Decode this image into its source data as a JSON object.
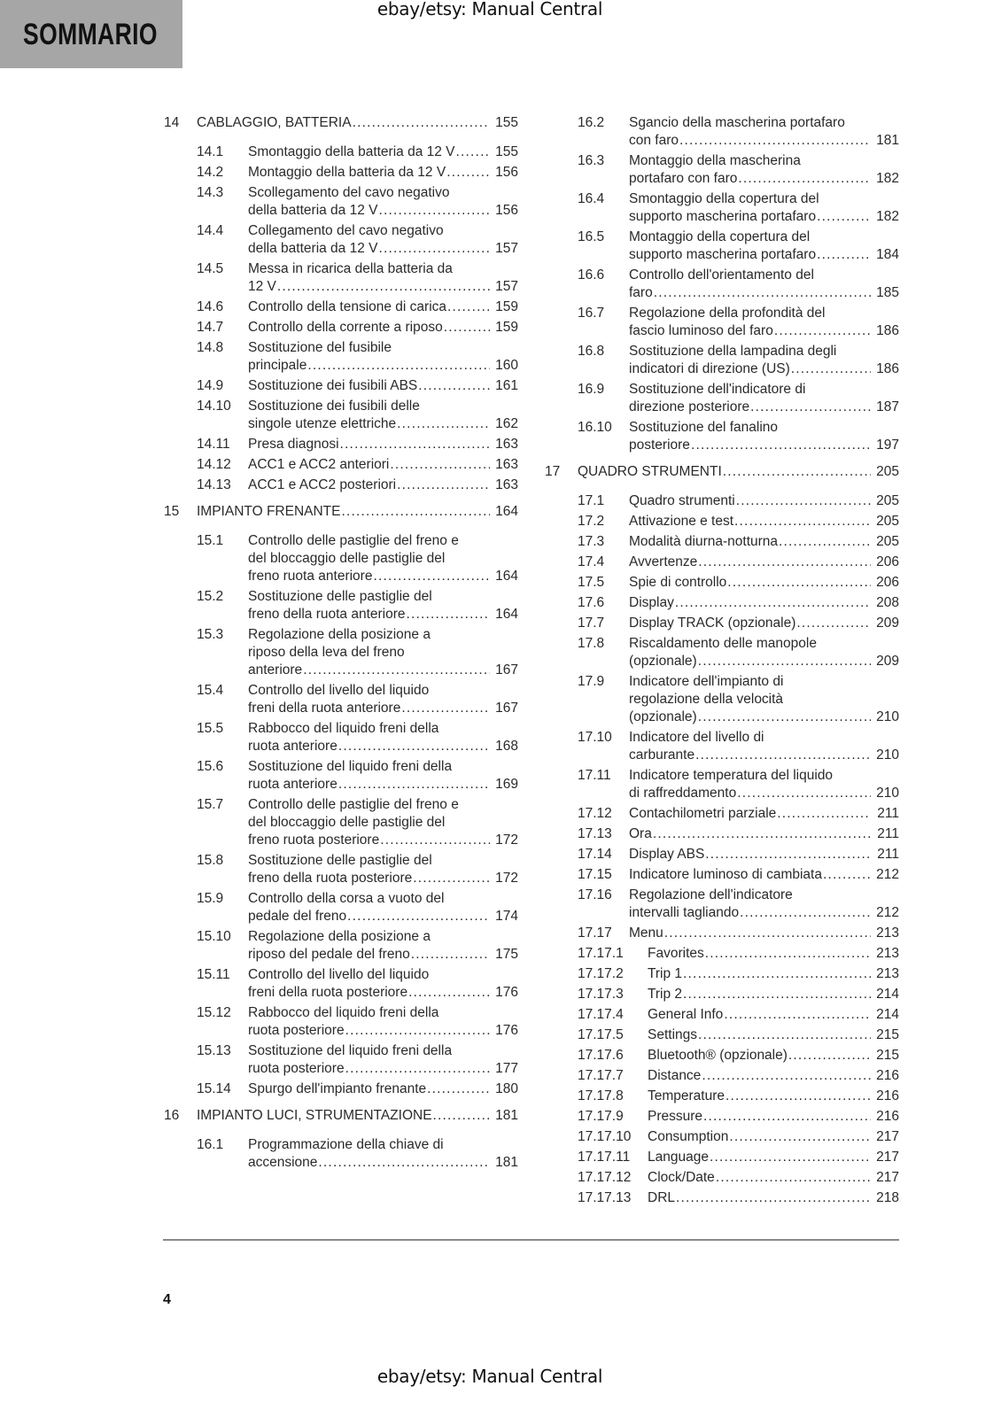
{
  "watermark": "ebay/etsy: Manual Central",
  "section_title": "SOMMARIO",
  "page_number": "4",
  "columns": {
    "left": [
      {
        "type": "chapter",
        "num": "14",
        "lines": [
          "CABLAGGIO, BATTERIA"
        ],
        "page": "155"
      },
      {
        "type": "sec",
        "num": "14.1",
        "lines": [
          "Smontaggio della batteria da 12 V"
        ],
        "page": "155"
      },
      {
        "type": "sec",
        "num": "14.2",
        "lines": [
          "Montaggio della batteria da 12 V"
        ],
        "page": "156"
      },
      {
        "type": "sec",
        "num": "14.3",
        "lines": [
          "Scollegamento del cavo negativo",
          "della batteria da 12 V"
        ],
        "page": "156"
      },
      {
        "type": "sec",
        "num": "14.4",
        "lines": [
          "Collegamento del cavo negativo",
          "della batteria da 12 V"
        ],
        "page": "157"
      },
      {
        "type": "sec",
        "num": "14.5",
        "lines": [
          "Messa in ricarica della batteria da",
          "12 V"
        ],
        "page": "157"
      },
      {
        "type": "sec",
        "num": "14.6",
        "lines": [
          "Controllo della tensione di carica"
        ],
        "page": "159"
      },
      {
        "type": "sec",
        "num": "14.7",
        "lines": [
          "Controllo della corrente a riposo"
        ],
        "page": "159"
      },
      {
        "type": "sec",
        "num": "14.8",
        "lines": [
          "Sostituzione del fusibile",
          "principale"
        ],
        "page": "160"
      },
      {
        "type": "sec",
        "num": "14.9",
        "lines": [
          "Sostituzione dei fusibili ABS"
        ],
        "page": "161"
      },
      {
        "type": "sec",
        "num": "14.10",
        "lines": [
          "Sostituzione dei fusibili delle",
          "singole utenze elettriche"
        ],
        "page": "162"
      },
      {
        "type": "sec",
        "num": "14.11",
        "lines": [
          "Presa diagnosi"
        ],
        "page": "163"
      },
      {
        "type": "sec",
        "num": "14.12",
        "lines": [
          "ACC1 e ACC2 anteriori"
        ],
        "page": "163"
      },
      {
        "type": "sec",
        "num": "14.13",
        "lines": [
          "ACC1 e ACC2 posteriori"
        ],
        "page": "163"
      },
      {
        "type": "chapter",
        "num": "15",
        "lines": [
          "IMPIANTO FRENANTE"
        ],
        "page": "164"
      },
      {
        "type": "sec",
        "num": "15.1",
        "lines": [
          "Controllo delle pastiglie del freno e",
          "del bloccaggio delle pastiglie del",
          "freno ruota anteriore"
        ],
        "page": "164"
      },
      {
        "type": "sec",
        "num": "15.2",
        "lines": [
          "Sostituzione delle pastiglie del",
          "freno della ruota anteriore"
        ],
        "page": "164"
      },
      {
        "type": "sec",
        "num": "15.3",
        "lines": [
          "Regolazione della posizione a",
          "riposo della leva del freno",
          "anteriore"
        ],
        "page": "167"
      },
      {
        "type": "sec",
        "num": "15.4",
        "lines": [
          "Controllo del livello del liquido",
          "freni della ruota anteriore"
        ],
        "page": "167"
      },
      {
        "type": "sec",
        "num": "15.5",
        "lines": [
          "Rabbocco del liquido freni della",
          "ruota anteriore"
        ],
        "page": "168"
      },
      {
        "type": "sec",
        "num": "15.6",
        "lines": [
          "Sostituzione del liquido freni della",
          "ruota anteriore"
        ],
        "page": "169"
      },
      {
        "type": "sec",
        "num": "15.7",
        "lines": [
          "Controllo delle pastiglie del freno e",
          "del bloccaggio delle pastiglie del",
          "freno ruota posteriore"
        ],
        "page": "172"
      },
      {
        "type": "sec",
        "num": "15.8",
        "lines": [
          "Sostituzione delle pastiglie del",
          "freno della ruota posteriore"
        ],
        "page": "172"
      },
      {
        "type": "sec",
        "num": "15.9",
        "lines": [
          "Controllo della corsa a vuoto del",
          "pedale del freno"
        ],
        "page": "174"
      },
      {
        "type": "sec",
        "num": "15.10",
        "lines": [
          "Regolazione della posizione a",
          "riposo del pedale del freno"
        ],
        "page": "175"
      },
      {
        "type": "sec",
        "num": "15.11",
        "lines": [
          "Controllo del livello del liquido",
          "freni della ruota posteriore"
        ],
        "page": "176"
      },
      {
        "type": "sec",
        "num": "15.12",
        "lines": [
          "Rabbocco del liquido freni della",
          "ruota posteriore"
        ],
        "page": "176"
      },
      {
        "type": "sec",
        "num": "15.13",
        "lines": [
          "Sostituzione del liquido freni della",
          "ruota posteriore"
        ],
        "page": "177"
      },
      {
        "type": "sec",
        "num": "15.14",
        "lines": [
          "Spurgo dell'impianto frenante"
        ],
        "page": "180"
      },
      {
        "type": "chapter",
        "num": "16",
        "lines": [
          "IMPIANTO LUCI, STRUMENTAZIONE"
        ],
        "page": "181"
      },
      {
        "type": "sec",
        "num": "16.1",
        "lines": [
          "Programmazione della chiave di",
          "accensione"
        ],
        "page": "181"
      }
    ],
    "right": [
      {
        "type": "sec",
        "num": "16.2",
        "lines": [
          "Sgancio della mascherina portafaro",
          "con faro"
        ],
        "page": "181"
      },
      {
        "type": "sec",
        "num": "16.3",
        "lines": [
          "Montaggio della mascherina",
          "portafaro con faro"
        ],
        "page": "182"
      },
      {
        "type": "sec",
        "num": "16.4",
        "lines": [
          "Smontaggio della copertura del",
          "supporto mascherina portafaro"
        ],
        "page": "182"
      },
      {
        "type": "sec",
        "num": "16.5",
        "lines": [
          "Montaggio della copertura del",
          "supporto mascherina portafaro"
        ],
        "page": "184"
      },
      {
        "type": "sec",
        "num": "16.6",
        "lines": [
          "Controllo dell'orientamento del",
          "faro"
        ],
        "page": "185"
      },
      {
        "type": "sec",
        "num": "16.7",
        "lines": [
          "Regolazione della profondità del",
          "fascio luminoso del faro"
        ],
        "page": "186"
      },
      {
        "type": "sec",
        "num": "16.8",
        "lines": [
          "Sostituzione della lampadina degli",
          "indicatori di direzione (US)"
        ],
        "page": "186"
      },
      {
        "type": "sec",
        "num": "16.9",
        "lines": [
          "Sostituzione dell'indicatore di",
          "direzione posteriore"
        ],
        "page": "187"
      },
      {
        "type": "sec",
        "num": "16.10",
        "lines": [
          "Sostituzione del fanalino",
          "posteriore"
        ],
        "page": "197"
      },
      {
        "type": "chapter",
        "num": "17",
        "lines": [
          "QUADRO STRUMENTI"
        ],
        "page": "205"
      },
      {
        "type": "sec",
        "num": "17.1",
        "lines": [
          "Quadro strumenti"
        ],
        "page": "205"
      },
      {
        "type": "sec",
        "num": "17.2",
        "lines": [
          "Attivazione e test"
        ],
        "page": "205"
      },
      {
        "type": "sec",
        "num": "17.3",
        "lines": [
          "Modalità diurna-notturna"
        ],
        "page": "205"
      },
      {
        "type": "sec",
        "num": "17.4",
        "lines": [
          "Avvertenze"
        ],
        "page": "206"
      },
      {
        "type": "sec",
        "num": "17.5",
        "lines": [
          "Spie di controllo"
        ],
        "page": "206"
      },
      {
        "type": "sec",
        "num": "17.6",
        "lines": [
          "Display"
        ],
        "page": "208"
      },
      {
        "type": "sec",
        "num": "17.7",
        "lines": [
          "Display TRACK (opzionale)"
        ],
        "page": "209"
      },
      {
        "type": "sec",
        "num": "17.8",
        "lines": [
          "Riscaldamento delle manopole",
          "(opzionale)"
        ],
        "page": "209"
      },
      {
        "type": "sec",
        "num": "17.9",
        "lines": [
          "Indicatore dell'impianto di",
          "regolazione della velocità",
          "(opzionale)"
        ],
        "page": "210"
      },
      {
        "type": "sec",
        "num": "17.10",
        "lines": [
          "Indicatore del livello di",
          "carburante"
        ],
        "page": "210"
      },
      {
        "type": "sec",
        "num": "17.11",
        "lines": [
          "Indicatore temperatura del liquido",
          "di raffreddamento"
        ],
        "page": "210"
      },
      {
        "type": "sec",
        "num": "17.12",
        "lines": [
          "Contachilometri parziale"
        ],
        "page": "211"
      },
      {
        "type": "sec",
        "num": "17.13",
        "lines": [
          "Ora"
        ],
        "page": "211"
      },
      {
        "type": "sec",
        "num": "17.14",
        "lines": [
          "Display ABS"
        ],
        "page": "211"
      },
      {
        "type": "sec",
        "num": "17.15",
        "lines": [
          "Indicatore luminoso di cambiata"
        ],
        "page": "212"
      },
      {
        "type": "sec",
        "num": "17.16",
        "lines": [
          "Regolazione dell'indicatore",
          "intervalli tagliando"
        ],
        "page": "212"
      },
      {
        "type": "sec",
        "num": "17.17",
        "lines": [
          "Menu"
        ],
        "page": "213"
      },
      {
        "type": "sub",
        "num": "17.17.1",
        "lines": [
          "Favorites"
        ],
        "page": "213"
      },
      {
        "type": "sub",
        "num": "17.17.2",
        "lines": [
          "Trip 1"
        ],
        "page": "213"
      },
      {
        "type": "sub",
        "num": "17.17.3",
        "lines": [
          "Trip 2"
        ],
        "page": "214"
      },
      {
        "type": "sub",
        "num": "17.17.4",
        "lines": [
          "General Info"
        ],
        "page": "214"
      },
      {
        "type": "sub",
        "num": "17.17.5",
        "lines": [
          "Settings"
        ],
        "page": "215"
      },
      {
        "type": "sub",
        "num": "17.17.6",
        "lines": [
          "Bluetooth® (opzionale)"
        ],
        "page": "215"
      },
      {
        "type": "sub",
        "num": "17.17.7",
        "lines": [
          "Distance"
        ],
        "page": "216"
      },
      {
        "type": "sub",
        "num": "17.17.8",
        "lines": [
          "Temperature"
        ],
        "page": "216"
      },
      {
        "type": "sub",
        "num": "17.17.9",
        "lines": [
          "Pressure"
        ],
        "page": "216"
      },
      {
        "type": "sub",
        "num": "17.17.10",
        "lines": [
          "Consumption"
        ],
        "page": "217"
      },
      {
        "type": "sub",
        "num": "17.17.11",
        "lines": [
          "Language"
        ],
        "page": "217"
      },
      {
        "type": "sub",
        "num": "17.17.12",
        "lines": [
          "Clock/Date"
        ],
        "page": "217"
      },
      {
        "type": "sub",
        "num": "17.17.13",
        "lines": [
          "DRL"
        ],
        "page": "218"
      }
    ]
  }
}
